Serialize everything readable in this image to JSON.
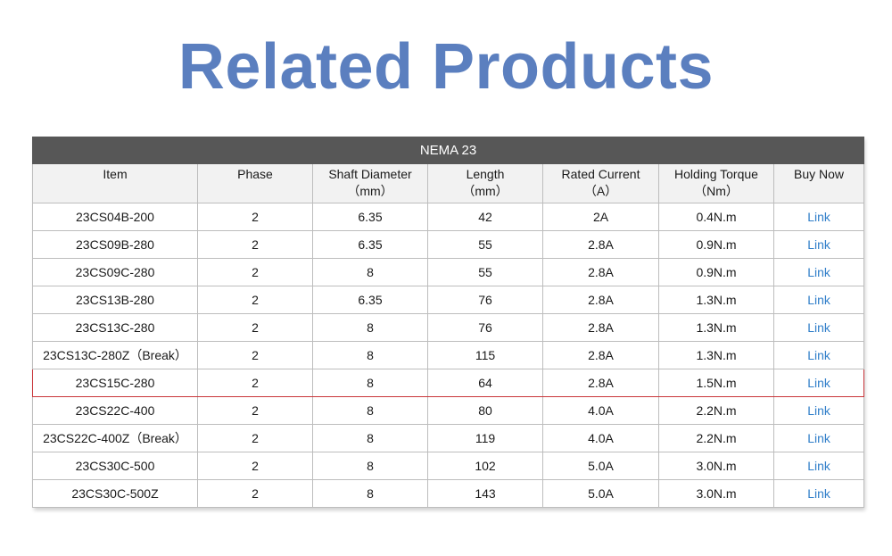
{
  "title": "Related Products",
  "table": {
    "group_header": "NEMA 23",
    "columns": [
      {
        "label": "Item",
        "unit": ""
      },
      {
        "label": "Phase",
        "unit": ""
      },
      {
        "label": "Shaft Diameter",
        "unit": "（mm）"
      },
      {
        "label": "Length",
        "unit": "（mm）"
      },
      {
        "label": "Rated Current",
        "unit": "（A）"
      },
      {
        "label": "Holding Torque",
        "unit": "（Nm）"
      },
      {
        "label": "Buy Now",
        "unit": ""
      }
    ],
    "rows": [
      {
        "item": "23CS04B-200",
        "phase": "2",
        "shaft": "6.35",
        "length": "42",
        "current": "2A",
        "torque": "0.4N.m",
        "buy": "Link"
      },
      {
        "item": "23CS09B-280",
        "phase": "2",
        "shaft": "6.35",
        "length": "55",
        "current": "2.8A",
        "torque": "0.9N.m",
        "buy": "Link"
      },
      {
        "item": "23CS09C-280",
        "phase": "2",
        "shaft": "8",
        "length": "55",
        "current": "2.8A",
        "torque": "0.9N.m",
        "buy": "Link"
      },
      {
        "item": "23CS13B-280",
        "phase": "2",
        "shaft": "6.35",
        "length": "76",
        "current": "2.8A",
        "torque": "1.3N.m",
        "buy": "Link"
      },
      {
        "item": "23CS13C-280",
        "phase": "2",
        "shaft": "8",
        "length": "76",
        "current": "2.8A",
        "torque": "1.3N.m",
        "buy": "Link"
      },
      {
        "item": "23CS13C-280Z（Break）",
        "phase": "2",
        "shaft": "8",
        "length": "115",
        "current": "2.8A",
        "torque": "1.3N.m",
        "buy": "Link"
      },
      {
        "item": "23CS15C-280",
        "phase": "2",
        "shaft": "8",
        "length": "64",
        "current": "2.8A",
        "torque": "1.5N.m",
        "buy": "Link",
        "highlight": true
      },
      {
        "item": "23CS22C-400",
        "phase": "2",
        "shaft": "8",
        "length": "80",
        "current": "4.0A",
        "torque": "2.2N.m",
        "buy": "Link"
      },
      {
        "item": "23CS22C-400Z（Break）",
        "phase": "2",
        "shaft": "8",
        "length": "119",
        "current": "4.0A",
        "torque": "2.2N.m",
        "buy": "Link"
      },
      {
        "item": "23CS30C-500",
        "phase": "2",
        "shaft": "8",
        "length": "102",
        "current": "5.0A",
        "torque": "3.0N.m",
        "buy": "Link"
      },
      {
        "item": "23CS30C-500Z",
        "phase": "2",
        "shaft": "8",
        "length": "143",
        "current": "5.0A",
        "torque": "3.0N.m",
        "buy": "Link"
      }
    ]
  },
  "colors": {
    "title": "#5b7fbf",
    "header_bar": "#575757",
    "link": "#2f7ec9",
    "highlight_border": "#c9353a"
  }
}
